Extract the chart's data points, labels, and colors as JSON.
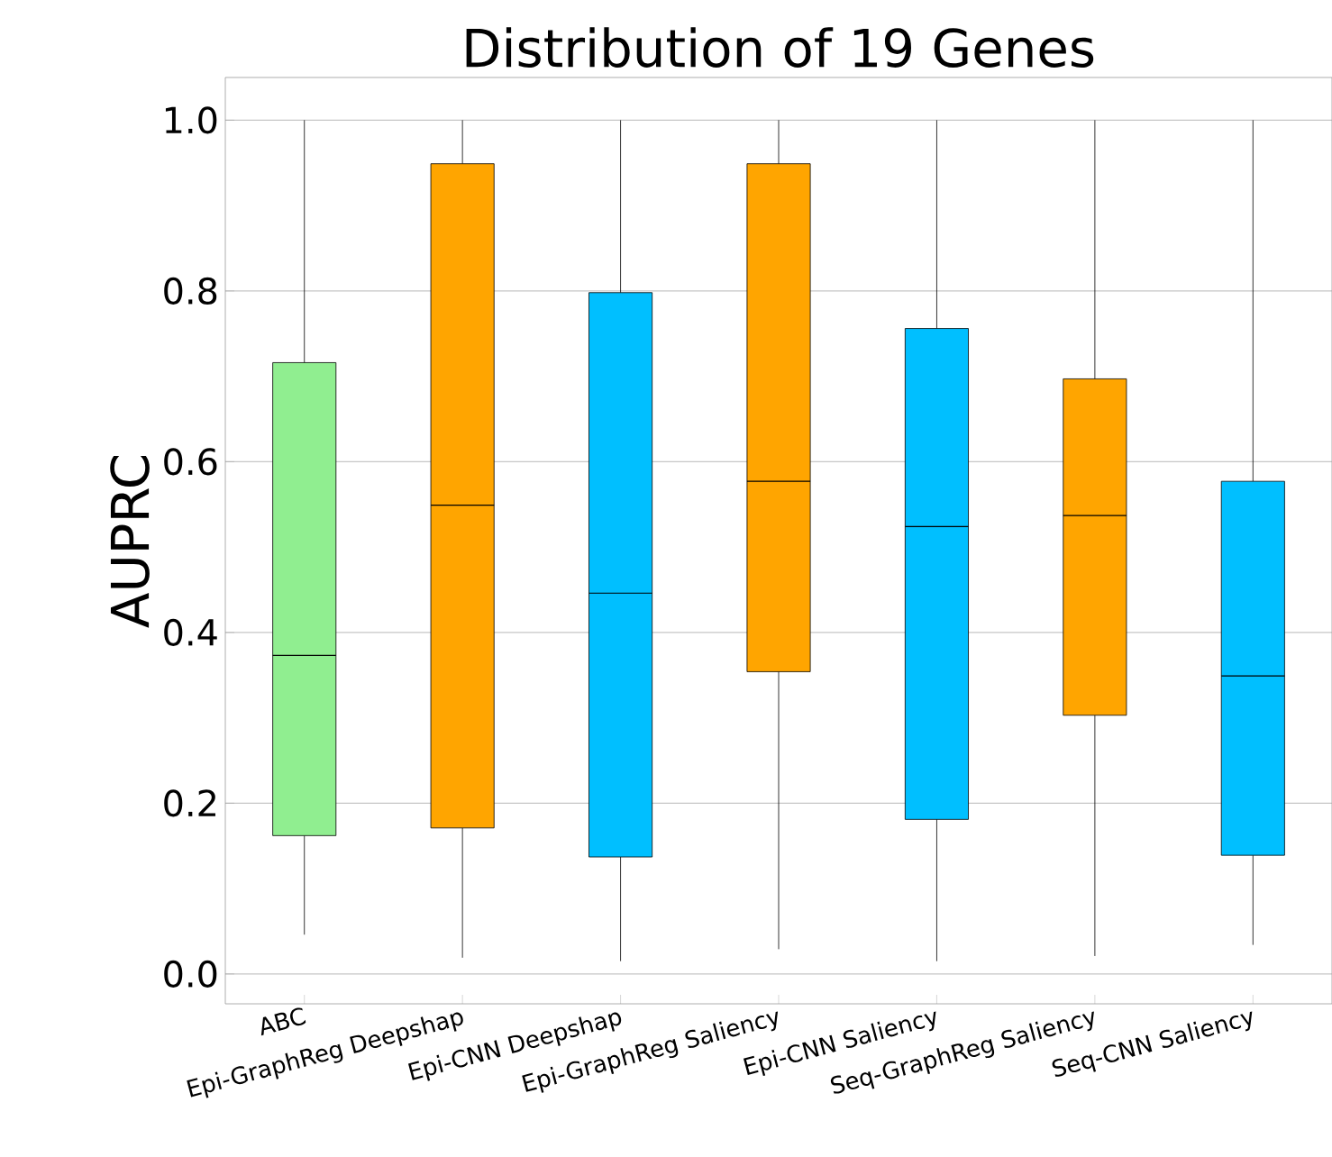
{
  "chart_data": {
    "type": "box",
    "title": "Distribution of 19 Genes",
    "ylabel": "AUPRC",
    "categories": [
      "ABC",
      "Epi-GraphReg Deepshap",
      "Epi-CNN Deepshap",
      "Epi-GraphReg Saliency",
      "Epi-CNN Saliency",
      "Seq-GraphReg Saliency",
      "Seq-CNN Saliency"
    ],
    "boxes": [
      {
        "low": 0.046,
        "q1": 0.162,
        "median": 0.373,
        "q3": 0.716,
        "high": 1.0
      },
      {
        "low": 0.019,
        "q1": 0.171,
        "median": 0.549,
        "q3": 0.949,
        "high": 1.0
      },
      {
        "low": 0.015,
        "q1": 0.137,
        "median": 0.446,
        "q3": 0.798,
        "high": 1.0
      },
      {
        "low": 0.029,
        "q1": 0.354,
        "median": 0.577,
        "q3": 0.949,
        "high": 1.0
      },
      {
        "low": 0.015,
        "q1": 0.181,
        "median": 0.524,
        "q3": 0.756,
        "high": 1.0
      },
      {
        "low": 0.021,
        "q1": 0.303,
        "median": 0.537,
        "q3": 0.697,
        "high": 1.0
      },
      {
        "low": 0.034,
        "q1": 0.139,
        "median": 0.349,
        "q3": 0.577,
        "high": 1.0
      }
    ],
    "colors": [
      "#90ee90",
      "#ffa500",
      "#00bfff",
      "#ffa500",
      "#00bfff",
      "#ffa500",
      "#00bfff"
    ],
    "ylim": [
      -0.035,
      1.05
    ],
    "yticks": [
      {
        "value": 0,
        "label": "0.0"
      },
      0.2,
      0.4,
      0.6,
      0.8,
      {
        "value": 1,
        "label": "1.0"
      }
    ],
    "grid": "y"
  }
}
